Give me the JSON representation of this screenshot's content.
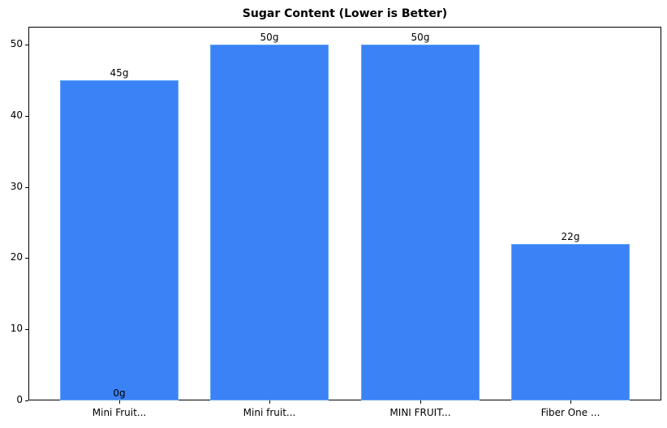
{
  "chart_data": {
    "type": "bar",
    "title": "Sugar Content (Lower is Better)",
    "xlabel": "",
    "ylabel": "",
    "categories": [
      "Mini Fruit...",
      "Mini fruit...",
      "MINI FRUIT...",
      "Fiber One ..."
    ],
    "values": [
      45,
      50,
      50,
      22
    ],
    "bar_labels": [
      "45g",
      "50g",
      "50g",
      "22g"
    ],
    "annotations": [
      {
        "text": "0g",
        "x": "Mini Fruit...",
        "y": 0
      }
    ],
    "ylim": [
      0,
      52.5
    ],
    "yticks": [
      0,
      10,
      20,
      30,
      40,
      50
    ],
    "grid": false,
    "bar_color": "#3b82f6"
  }
}
